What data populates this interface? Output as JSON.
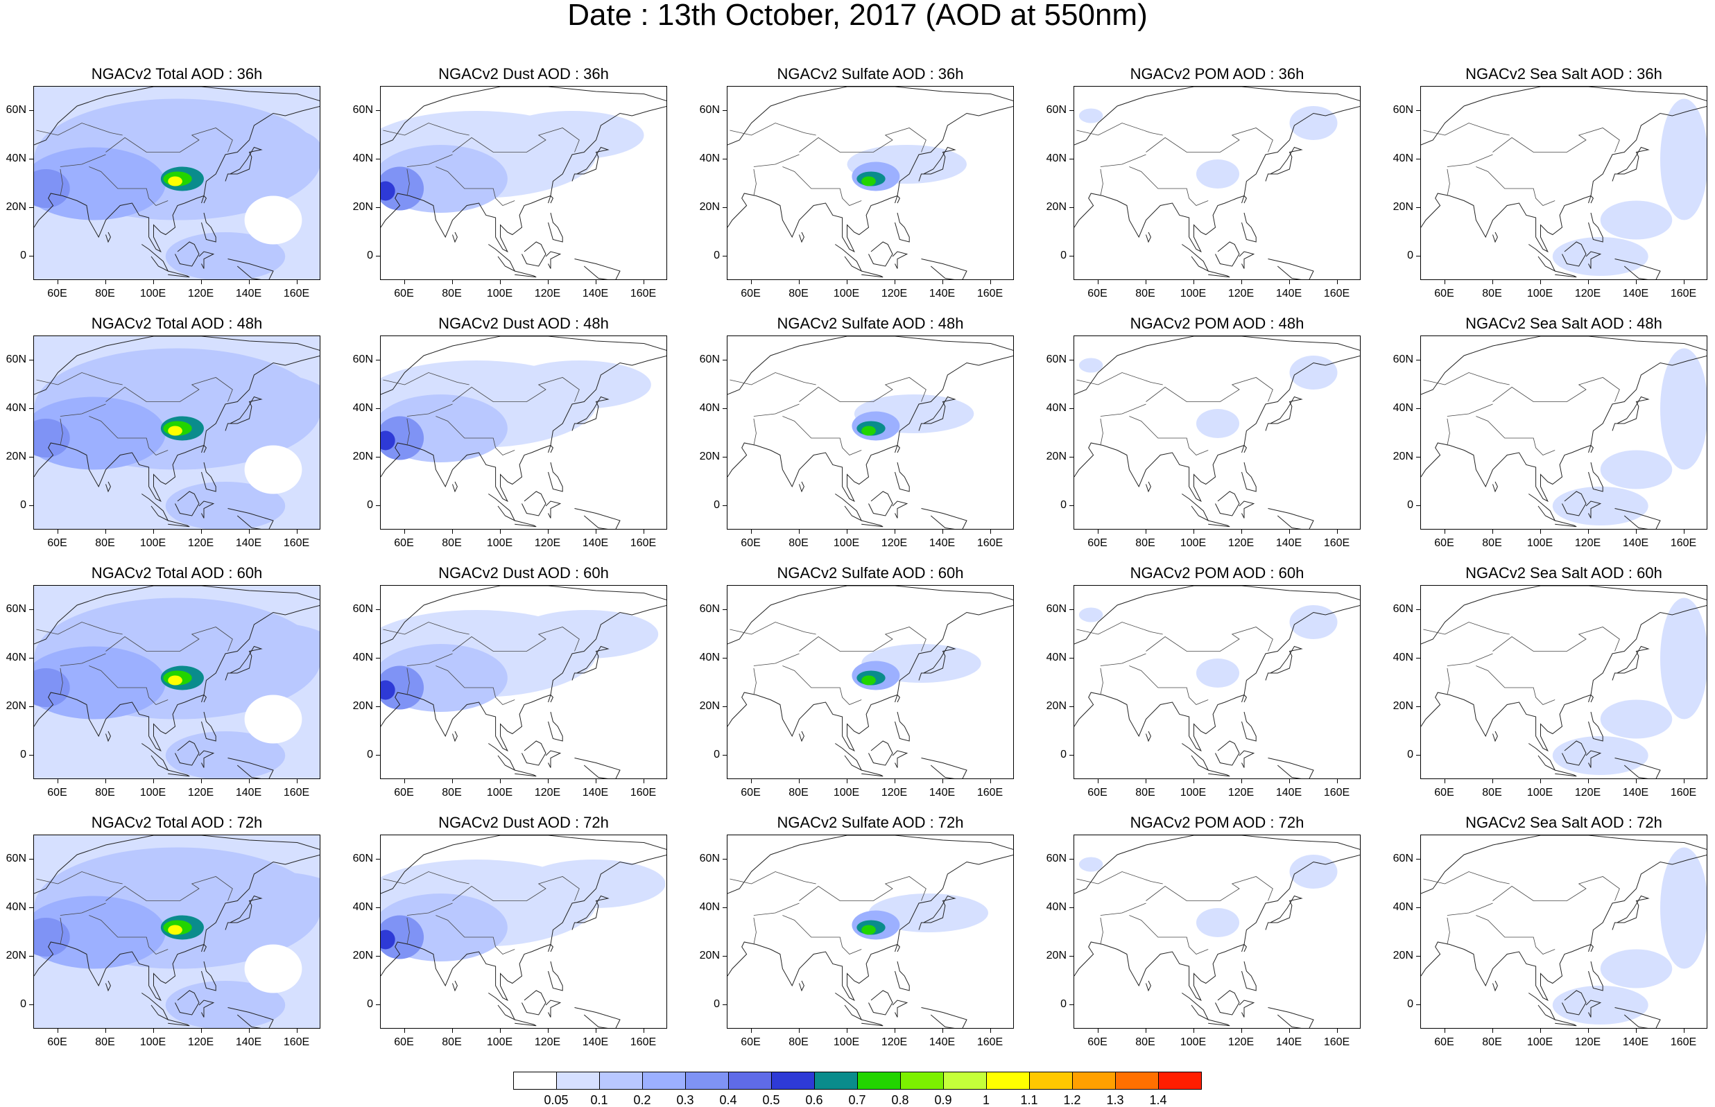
{
  "title": "Date : 13th October, 2017 (AOD at 550nm)",
  "lat_labels": [
    "60N",
    "40N",
    "20N",
    "0"
  ],
  "lon_labels": [
    "60E",
    "80E",
    "100E",
    "120E",
    "140E",
    "160E"
  ],
  "panels": [
    [
      "NGACv2 Total AOD : 36h",
      "NGACv2 Dust AOD : 36h",
      "NGACv2 Sulfate AOD : 36h",
      "NGACv2 POM AOD : 36h",
      "NGACv2 Sea Salt AOD : 36h"
    ],
    [
      "NGACv2 Total AOD : 48h",
      "NGACv2 Dust AOD : 48h",
      "NGACv2 Sulfate AOD : 48h",
      "NGACv2 POM AOD : 48h",
      "NGACv2 Sea Salt AOD : 48h"
    ],
    [
      "NGACv2 Total AOD : 60h",
      "NGACv2 Dust AOD : 60h",
      "NGACv2 Sulfate AOD : 60h",
      "NGACv2 POM AOD : 60h",
      "NGACv2 Sea Salt AOD : 60h"
    ],
    [
      "NGACv2 Total AOD : 72h",
      "NGACv2 Dust AOD : 72h",
      "NGACv2 Sulfate AOD : 72h",
      "NGACv2 POM AOD : 72h",
      "NGACv2 Sea Salt  AOD : 72h"
    ]
  ],
  "colorbar": {
    "labels": [
      "0.05",
      "0.1",
      "0.2",
      "0.3",
      "0.4",
      "0.5",
      "0.6",
      "0.7",
      "0.8",
      "0.9",
      "1",
      "1.1",
      "1.2",
      "1.3",
      "1.4"
    ],
    "colors": [
      "#ffffff",
      "#d6e0ff",
      "#b9c8ff",
      "#9cb0ff",
      "#7f93f5",
      "#5f6be8",
      "#2e3ad6",
      "#0a8c8c",
      "#22d400",
      "#7cf000",
      "#c5ff3a",
      "#ffff00",
      "#ffc800",
      "#ffa000",
      "#ff7000",
      "#ff1e00"
    ]
  },
  "map_extent": {
    "lon_min": 50,
    "lon_max": 170,
    "lat_min": -10,
    "lat_max": 70
  }
}
